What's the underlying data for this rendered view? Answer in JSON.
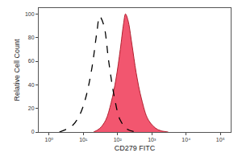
{
  "chart_data": {
    "type": "line",
    "x_label": "CD279 FITC",
    "y_label": "Relative Cell Count",
    "log": "x",
    "grid": false,
    "xlim": [
      0.5,
      200000
    ],
    "xticks": [
      {
        "value": 1,
        "label": "10⁰"
      },
      {
        "value": 10,
        "label": "10¹"
      },
      {
        "value": 100,
        "label": "10²"
      },
      {
        "value": 1000,
        "label": "10³"
      },
      {
        "value": 10000,
        "label": "10⁴"
      },
      {
        "value": 100000,
        "label": "10⁵"
      }
    ],
    "ylim": [
      0,
      105
    ],
    "yticks": [
      0,
      20,
      40,
      60,
      80,
      100
    ],
    "series": [
      {
        "type": "line",
        "line_style": "dashed",
        "color": "#000000",
        "x": [
          2,
          3,
          5,
          8,
          12,
          18,
          25,
          30,
          40,
          55,
          80,
          120,
          200,
          400
        ],
        "values": [
          0,
          2,
          6,
          15,
          30,
          55,
          85,
          98,
          90,
          60,
          30,
          10,
          2,
          0
        ]
      },
      {
        "type": "area",
        "line_style": "solid",
        "color": "#f2566f",
        "x": [
          20,
          30,
          45,
          65,
          90,
          120,
          150,
          170,
          200,
          260,
          350,
          500,
          800,
          1500,
          3000
        ],
        "values": [
          0,
          3,
          10,
          25,
          45,
          70,
          92,
          100,
          95,
          75,
          50,
          28,
          10,
          2,
          0
        ]
      }
    ]
  }
}
